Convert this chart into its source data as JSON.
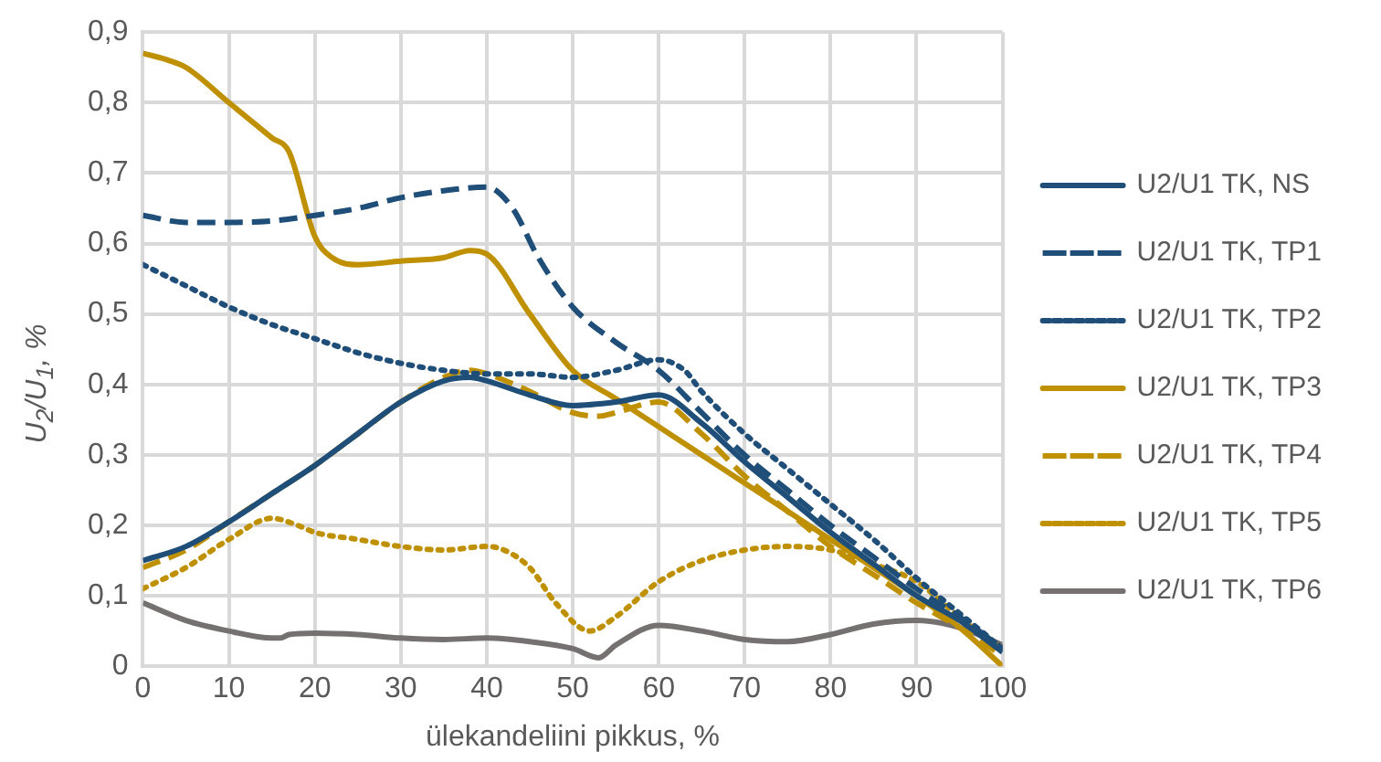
{
  "chart_data": {
    "type": "line",
    "xlabel": "ülekandeliini pikkus, %",
    "ylabel": "U$_{2}$/U$_{1}$,  %",
    "xlim": [
      0,
      100
    ],
    "xticks": [
      0,
      10,
      20,
      30,
      40,
      50,
      60,
      70,
      80,
      90,
      100
    ],
    "ylim": [
      0,
      0.9
    ],
    "yticks": [
      {
        "value": 0,
        "label": "0"
      },
      {
        "value": 0.1,
        "label": "0,1"
      },
      {
        "value": 0.2,
        "label": "0,2"
      },
      {
        "value": 0.3,
        "label": "0,3"
      },
      {
        "value": 0.4,
        "label": "0,4"
      },
      {
        "value": 0.5,
        "label": "0,5"
      },
      {
        "value": 0.6,
        "label": "0,6"
      },
      {
        "value": 0.7,
        "label": "0,7"
      },
      {
        "value": 0.8,
        "label": "0,8"
      },
      {
        "value": 0.9,
        "label": "0,9"
      }
    ],
    "grid": true,
    "legend": "right",
    "marker": "none",
    "series": [
      {
        "name": "U2/U1 TK, NS",
        "color": "#1f4e79",
        "line_style": "solid",
        "x": [
          0,
          5,
          10,
          15,
          20,
          25,
          30,
          35,
          38,
          40,
          45,
          50,
          55,
          60,
          65,
          70,
          75,
          80,
          85,
          90,
          95,
          100
        ],
        "values": [
          0.15,
          0.17,
          0.205,
          0.245,
          0.285,
          0.33,
          0.375,
          0.405,
          0.41,
          0.405,
          0.385,
          0.37,
          0.375,
          0.385,
          0.345,
          0.29,
          0.24,
          0.19,
          0.145,
          0.1,
          0.065,
          0.02
        ]
      },
      {
        "name": "U2/U1 TK, TP1",
        "color": "#1f4e79",
        "line_style": "dashed",
        "x": [
          0,
          5,
          10,
          15,
          20,
          25,
          30,
          35,
          40,
          43,
          46,
          50,
          55,
          60,
          65,
          70,
          75,
          80,
          85,
          90,
          95,
          100
        ],
        "values": [
          0.64,
          0.63,
          0.63,
          0.632,
          0.64,
          0.65,
          0.665,
          0.675,
          0.68,
          0.65,
          0.58,
          0.51,
          0.46,
          0.42,
          0.36,
          0.3,
          0.25,
          0.2,
          0.155,
          0.11,
          0.07,
          0.025
        ]
      },
      {
        "name": "U2/U1 TK, TP2",
        "color": "#1f4e79",
        "line_style": "dotted",
        "x": [
          0,
          5,
          10,
          15,
          20,
          25,
          30,
          35,
          40,
          45,
          50,
          55,
          60,
          63,
          65,
          70,
          75,
          80,
          85,
          90,
          95,
          100
        ],
        "values": [
          0.57,
          0.54,
          0.51,
          0.485,
          0.465,
          0.445,
          0.43,
          0.42,
          0.415,
          0.415,
          0.41,
          0.42,
          0.435,
          0.42,
          0.39,
          0.33,
          0.28,
          0.23,
          0.18,
          0.125,
          0.075,
          0.025
        ]
      },
      {
        "name": "U2/U1 TK, TP3",
        "color": "#bf9000",
        "line_style": "solid",
        "x": [
          0,
          3,
          5,
          10,
          15,
          17,
          20,
          22,
          25,
          30,
          35,
          38,
          40,
          45,
          50,
          55,
          60,
          65,
          70,
          75,
          80,
          85,
          90,
          95,
          100
        ],
        "values": [
          0.87,
          0.86,
          0.85,
          0.8,
          0.75,
          0.73,
          0.61,
          0.58,
          0.57,
          0.575,
          0.58,
          0.59,
          0.585,
          0.5,
          0.42,
          0.38,
          0.34,
          0.3,
          0.26,
          0.22,
          0.18,
          0.14,
          0.1,
          0.055,
          0
        ]
      },
      {
        "name": "U2/U1 TK, TP4",
        "color": "#bf9000",
        "line_style": "dashed",
        "x": [
          0,
          5,
          10,
          15,
          20,
          25,
          30,
          35,
          38,
          40,
          45,
          50,
          53,
          55,
          60,
          65,
          70,
          75,
          80,
          85,
          90,
          95,
          100
        ],
        "values": [
          0.14,
          0.165,
          0.205,
          0.245,
          0.285,
          0.33,
          0.375,
          0.41,
          0.42,
          0.415,
          0.39,
          0.36,
          0.355,
          0.36,
          0.375,
          0.33,
          0.27,
          0.22,
          0.17,
          0.13,
          0.09,
          0.055,
          0.015
        ]
      },
      {
        "name": "U2/U1 TK, TP5",
        "color": "#bf9000",
        "line_style": "dotted",
        "x": [
          0,
          5,
          10,
          15,
          18,
          20,
          25,
          30,
          35,
          40,
          42,
          45,
          48,
          52,
          55,
          60,
          65,
          70,
          75,
          80,
          85,
          90,
          95,
          100
        ],
        "values": [
          0.11,
          0.14,
          0.18,
          0.21,
          0.2,
          0.19,
          0.18,
          0.17,
          0.165,
          0.17,
          0.165,
          0.14,
          0.09,
          0.05,
          0.07,
          0.12,
          0.15,
          0.165,
          0.17,
          0.165,
          0.145,
          0.12,
          0.07,
          0.025
        ]
      },
      {
        "name": "U2/U1 TK, TP6",
        "color": "#767171",
        "line_style": "solid",
        "x": [
          0,
          5,
          10,
          15,
          16,
          17,
          20,
          25,
          30,
          35,
          40,
          45,
          50,
          53,
          55,
          60,
          65,
          70,
          75,
          80,
          85,
          90,
          95,
          100
        ],
        "values": [
          0.09,
          0.065,
          0.05,
          0.04,
          0.04,
          0.045,
          0.047,
          0.045,
          0.04,
          0.038,
          0.04,
          0.035,
          0.025,
          0.012,
          0.03,
          0.058,
          0.05,
          0.038,
          0.035,
          0.045,
          0.06,
          0.065,
          0.055,
          0.03
        ]
      }
    ]
  }
}
